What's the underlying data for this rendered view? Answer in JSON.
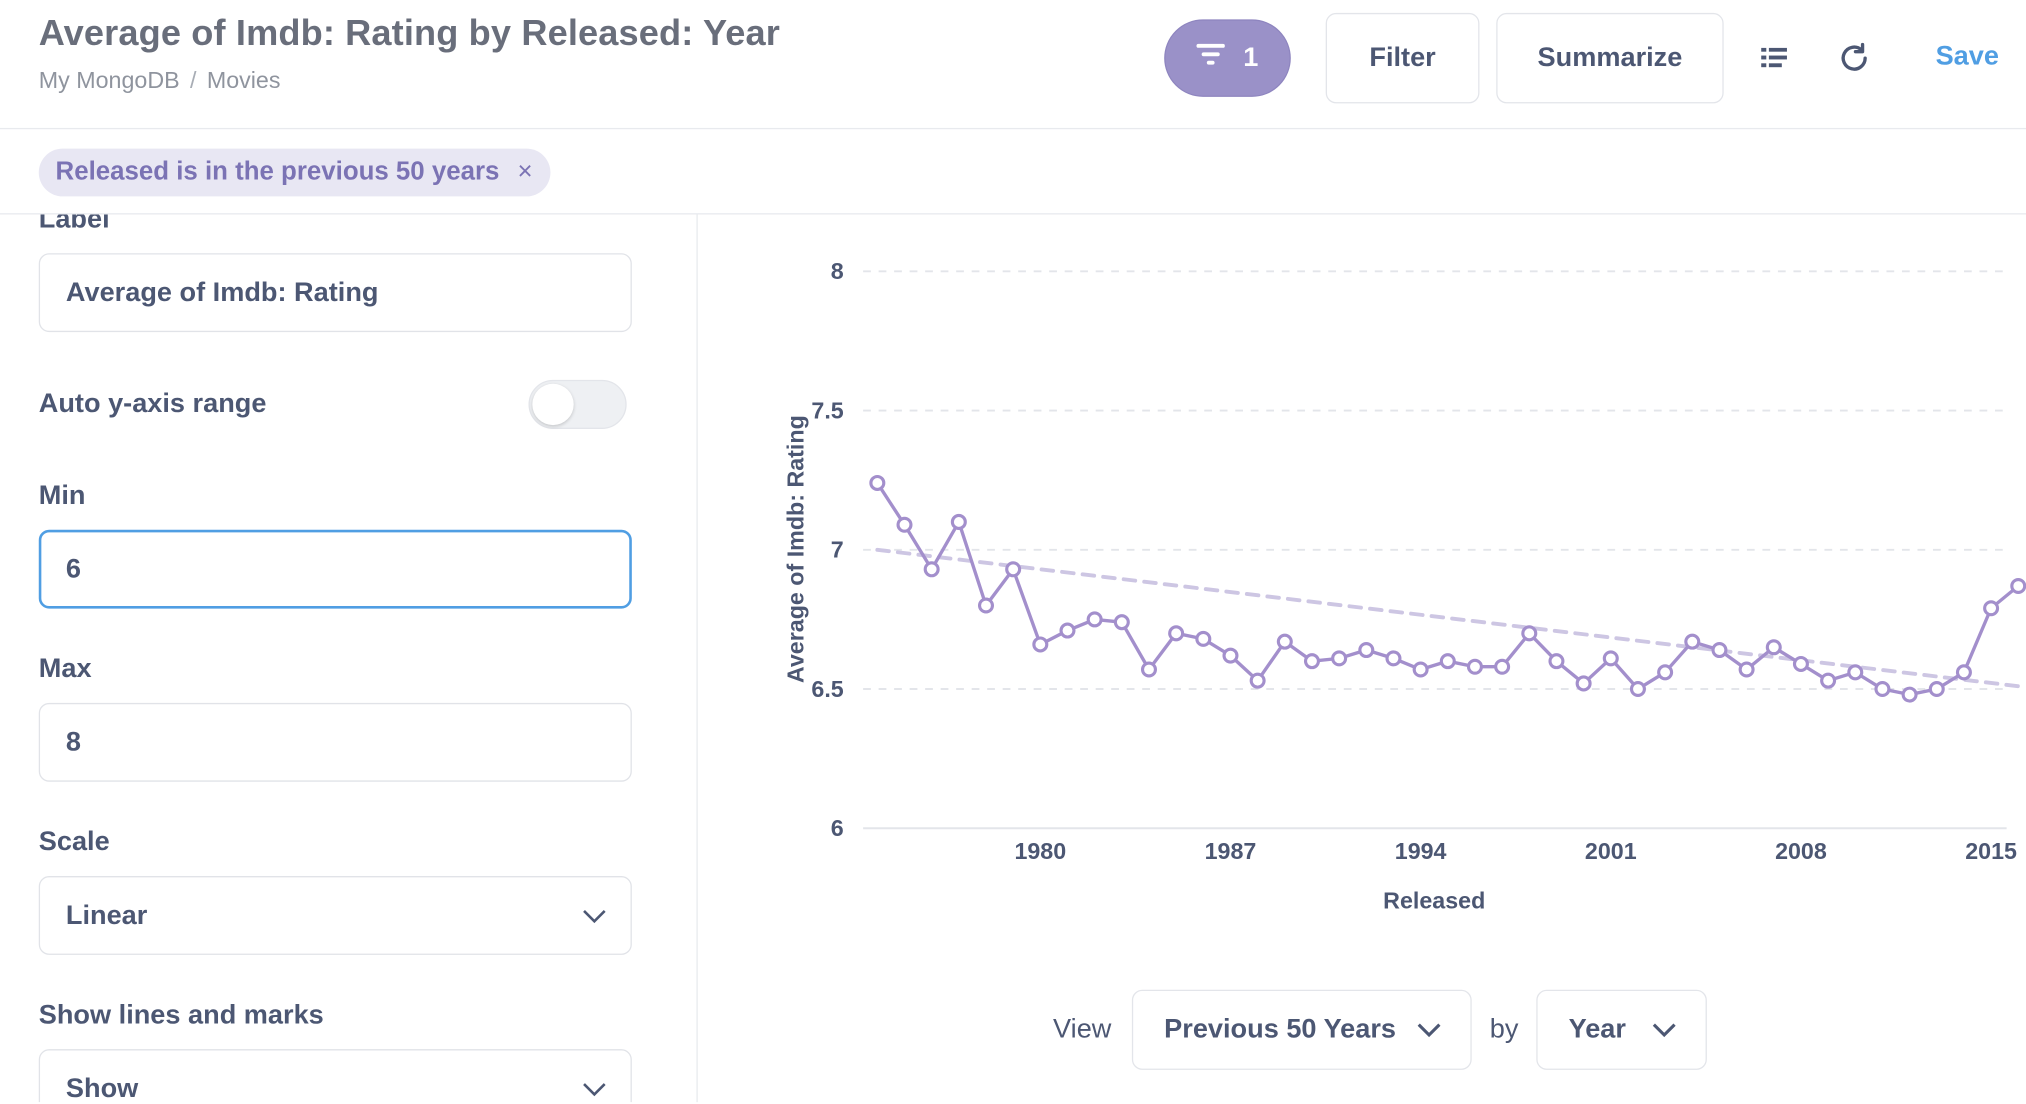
{
  "header": {
    "title": "Average of Imdb: Rating by Released: Year",
    "breadcrumb": [
      "My MongoDB",
      "Movies"
    ],
    "breadcrumb_sep": "/",
    "filter_count": "1",
    "filter_button": "Filter",
    "summarize_button": "Summarize",
    "save_label": "Save",
    "accent_color": "#509ee3",
    "filter_pill_color": "#9a91c8"
  },
  "filters": {
    "chip_label": "Released is in the previous 50 years",
    "chip_remove": "×"
  },
  "sidebar": {
    "label_heading": "Label",
    "label_value": "Average of Imdb: Rating",
    "auto_range_label": "Auto y-axis range",
    "auto_range_on": false,
    "min_label": "Min",
    "min_value": "6",
    "max_label": "Max",
    "max_value": "8",
    "scale_label": "Scale",
    "scale_value": "Linear",
    "lines_label": "Show lines and marks",
    "lines_value": "Show"
  },
  "view": {
    "view_label": "View",
    "period_value": "Previous 50 Years",
    "by_label": "by",
    "unit_value": "Year"
  },
  "chart_data": {
    "type": "line",
    "title": "",
    "xlabel": "Released",
    "ylabel": "Average of Imdb: Rating",
    "ylim": [
      6,
      8
    ],
    "yticks": [
      "6",
      "6.5",
      "7",
      "7.5",
      "8"
    ],
    "xticks": [
      "1980",
      "1987",
      "1994",
      "2001",
      "2008",
      "2015"
    ],
    "grid": true,
    "line_color": "#a38fcc",
    "trend_color": "#cdc6e3",
    "x": [
      1974,
      1975,
      1976,
      1977,
      1978,
      1979,
      1980,
      1981,
      1982,
      1983,
      1984,
      1985,
      1986,
      1987,
      1988,
      1989,
      1990,
      1991,
      1992,
      1993,
      1994,
      1995,
      1996,
      1997,
      1998,
      1999,
      2000,
      2001,
      2002,
      2003,
      2004,
      2005,
      2006,
      2007,
      2008,
      2009,
      2010,
      2011,
      2012,
      2013,
      2014,
      2015,
      2016
    ],
    "series": [
      {
        "values": [
          7.24,
          7.09,
          6.93,
          7.1,
          6.8,
          6.93,
          6.66,
          6.71,
          6.75,
          6.74,
          6.57,
          6.7,
          6.68,
          6.62,
          6.53,
          6.67,
          6.6,
          6.61,
          6.64,
          6.61,
          6.57,
          6.6,
          6.58,
          6.58,
          6.7,
          6.6,
          6.52,
          6.61,
          6.5,
          6.56,
          6.67,
          6.64,
          6.57,
          6.65,
          6.59,
          6.53,
          6.56,
          6.5,
          6.48,
          6.5,
          6.56,
          6.79,
          6.87
        ]
      }
    ],
    "trend": {
      "start": 7.0,
      "end": 6.51
    }
  }
}
